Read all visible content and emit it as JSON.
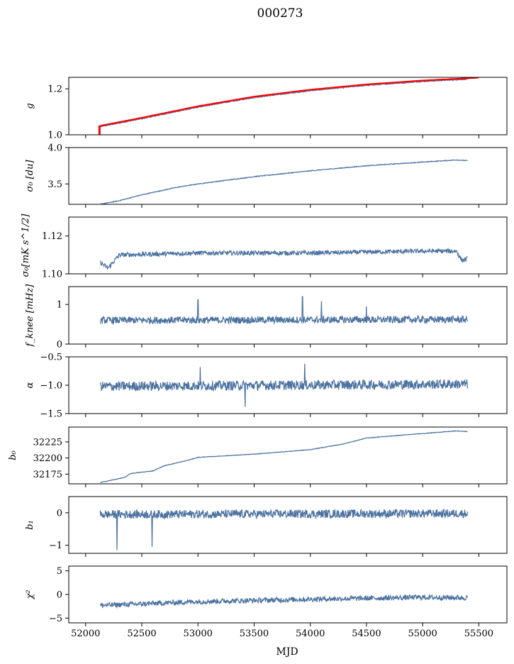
{
  "figure_title": "000273",
  "chart_data": {
    "type": "line",
    "title": "000273",
    "xlabel": "MJD",
    "xlim": [
      51850,
      55750
    ],
    "xticks": [
      52000,
      52500,
      53000,
      53500,
      54000,
      54500,
      55000,
      55500
    ],
    "x_start": 52130,
    "x_end": 55400,
    "line_color": "#4c72a0",
    "overlay_color": "#ff0000",
    "panels": [
      {
        "name": "g",
        "ylabel": "g",
        "ylim": [
          1.0,
          1.25
        ],
        "yticks": [
          1.0,
          1.2
        ],
        "ytick_labels": [
          "1.0",
          "1.2"
        ],
        "trend": [
          [
            52130,
            1.035
          ],
          [
            52500,
            1.07
          ],
          [
            53000,
            1.12
          ],
          [
            53500,
            1.162
          ],
          [
            54000,
            1.192
          ],
          [
            54500,
            1.215
          ],
          [
            55000,
            1.232
          ],
          [
            55400,
            1.242
          ],
          [
            55500,
            1.245
          ]
        ],
        "noise": 0.002,
        "overlay": true
      },
      {
        "name": "sigma0_du",
        "ylabel": "σ₀ [du]",
        "ylim": [
          3.22,
          4.0
        ],
        "yticks": [
          3.5,
          4.0
        ],
        "ytick_labels": [
          "3.5",
          "4.0"
        ],
        "trend": [
          [
            52130,
            3.22
          ],
          [
            52300,
            3.27
          ],
          [
            52500,
            3.35
          ],
          [
            52800,
            3.45
          ],
          [
            53000,
            3.5
          ],
          [
            53500,
            3.6
          ],
          [
            54000,
            3.68
          ],
          [
            54500,
            3.75
          ],
          [
            55000,
            3.8
          ],
          [
            55300,
            3.83
          ],
          [
            55400,
            3.82
          ]
        ],
        "noise": 0.005
      },
      {
        "name": "sigma0_mk",
        "ylabel": "σ₀[mK s^1/2]",
        "ylim": [
          1.1,
          1.13
        ],
        "yticks": [
          1.1,
          1.12
        ],
        "ytick_labels": [
          "1.10",
          "1.12"
        ],
        "trend": [
          [
            52130,
            1.106
          ],
          [
            52200,
            1.103
          ],
          [
            52300,
            1.11
          ],
          [
            53000,
            1.111
          ],
          [
            54000,
            1.111
          ],
          [
            55000,
            1.112
          ],
          [
            55300,
            1.112
          ],
          [
            55350,
            1.107
          ],
          [
            55400,
            1.108
          ]
        ],
        "noise": 0.0012
      },
      {
        "name": "fknee",
        "ylabel": "f_knee [mHz]",
        "ylim": [
          0,
          1.45
        ],
        "yticks": [
          0,
          1
        ],
        "ytick_labels": [
          "0",
          "1"
        ],
        "trend": [
          [
            52130,
            0.6
          ],
          [
            55400,
            0.62
          ]
        ],
        "noise": 0.09,
        "spikes": [
          [
            53000,
            1.12
          ],
          [
            53930,
            1.2
          ],
          [
            54100,
            1.08
          ],
          [
            54500,
            0.95
          ]
        ]
      },
      {
        "name": "alpha",
        "ylabel": "α",
        "ylim": [
          -1.5,
          -0.5
        ],
        "yticks": [
          -1.5,
          -1.0,
          -0.5
        ],
        "ytick_labels": [
          "−1.5",
          "−1.0",
          "−0.5"
        ],
        "trend": [
          [
            52130,
            -1.02
          ],
          [
            55400,
            -0.98
          ]
        ],
        "noise": 0.085,
        "spikes": [
          [
            53420,
            -1.38
          ],
          [
            53950,
            -0.62
          ],
          [
            53020,
            -0.68
          ]
        ]
      },
      {
        "name": "b0",
        "ylabel": "b₀",
        "ylim": [
          32160,
          32248
        ],
        "yticks": [
          32175,
          32200,
          32225
        ],
        "ytick_labels": [
          "32175",
          "32200",
          "32225"
        ],
        "trend": [
          [
            52130,
            32162
          ],
          [
            52350,
            32170
          ],
          [
            52400,
            32176
          ],
          [
            52500,
            32178
          ],
          [
            52600,
            32180
          ],
          [
            52700,
            32188
          ],
          [
            52900,
            32196
          ],
          [
            53000,
            32201
          ],
          [
            53200,
            32203
          ],
          [
            53500,
            32206
          ],
          [
            54000,
            32213
          ],
          [
            54300,
            32222
          ],
          [
            54500,
            32231
          ],
          [
            55000,
            32238
          ],
          [
            55300,
            32242
          ],
          [
            55400,
            32241
          ]
        ],
        "noise": 0.4
      },
      {
        "name": "b1",
        "ylabel": "b₁",
        "ylim": [
          -1.25,
          0.5
        ],
        "yticks": [
          -1,
          0
        ],
        "ytick_labels": [
          "−1",
          "0"
        ],
        "trend": [
          [
            52130,
            -0.05
          ],
          [
            55400,
            -0.02
          ]
        ],
        "noise": 0.13,
        "spikes": [
          [
            52280,
            -1.15
          ],
          [
            52590,
            -1.05
          ]
        ]
      },
      {
        "name": "chi2",
        "ylabel": "χ²",
        "ylim": [
          -6,
          6
        ],
        "yticks": [
          -5,
          0,
          5
        ],
        "ytick_labels": [
          "−5",
          "0",
          "5"
        ],
        "trend": [
          [
            52130,
            -2.3
          ],
          [
            52500,
            -2.0
          ],
          [
            53000,
            -1.5
          ],
          [
            54000,
            -1.0
          ],
          [
            55000,
            -0.6
          ],
          [
            55400,
            -0.7
          ]
        ],
        "noise": 0.55
      }
    ]
  }
}
